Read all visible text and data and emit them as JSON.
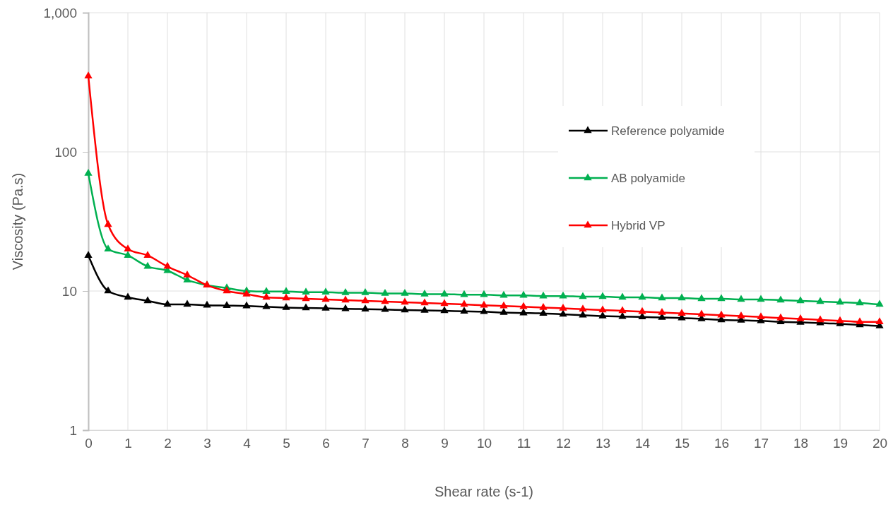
{
  "chart_data": {
    "type": "line",
    "xlabel": "Shear rate (s-1)",
    "ylabel": "Viscosity (Pa.s)",
    "log": "y",
    "grid": true,
    "legend": "right",
    "marker": "triangle",
    "line_style": "solid",
    "x": [
      0,
      0.5,
      1,
      1.5,
      2,
      2.5,
      3,
      3.5,
      4,
      4.5,
      5,
      5.5,
      6,
      6.5,
      7,
      7.5,
      8,
      8.5,
      9,
      9.5,
      10,
      10.5,
      11,
      11.5,
      12,
      12.5,
      13,
      13.5,
      14,
      14.5,
      15,
      15.5,
      16,
      16.5,
      17,
      17.5,
      18,
      18.5,
      19,
      19.5,
      20
    ],
    "xlim": [
      0,
      20
    ],
    "xticks": [
      0,
      1,
      2,
      3,
      4,
      5,
      6,
      7,
      8,
      9,
      10,
      11,
      12,
      13,
      14,
      15,
      16,
      17,
      18,
      19,
      20
    ],
    "ylim": [
      1,
      1000
    ],
    "yticks": [
      1,
      10,
      100,
      {
        "value": 1000,
        "label": "1,000"
      }
    ],
    "series": [
      {
        "name": "Reference polyamide",
        "color": "#000000",
        "values": [
          18,
          10,
          9,
          8.5,
          8,
          8,
          7.9,
          7.85,
          7.8,
          7.7,
          7.6,
          7.55,
          7.5,
          7.45,
          7.4,
          7.35,
          7.3,
          7.25,
          7.2,
          7.15,
          7.1,
          7.0,
          6.95,
          6.9,
          6.8,
          6.7,
          6.6,
          6.55,
          6.5,
          6.45,
          6.4,
          6.3,
          6.2,
          6.15,
          6.1,
          6.0,
          5.95,
          5.9,
          5.8,
          5.7,
          5.6
        ]
      },
      {
        "name": "AB polyamide",
        "color": "#00b050",
        "values": [
          70,
          20,
          18,
          15,
          14,
          12,
          11,
          10.5,
          10,
          9.9,
          9.9,
          9.8,
          9.8,
          9.7,
          9.7,
          9.6,
          9.6,
          9.5,
          9.5,
          9.4,
          9.4,
          9.3,
          9.3,
          9.2,
          9.2,
          9.1,
          9.1,
          9.0,
          9.0,
          8.9,
          8.9,
          8.8,
          8.8,
          8.7,
          8.7,
          8.6,
          8.5,
          8.4,
          8.3,
          8.2,
          8.0
        ]
      },
      {
        "name": "Hybrid VP",
        "color": "#ff0000",
        "values": [
          350,
          30,
          20,
          18,
          15,
          13,
          11,
          10,
          9.5,
          9,
          8.9,
          8.8,
          8.7,
          8.6,
          8.5,
          8.4,
          8.3,
          8.2,
          8.1,
          8.0,
          7.9,
          7.8,
          7.7,
          7.6,
          7.5,
          7.4,
          7.3,
          7.2,
          7.1,
          7.0,
          6.9,
          6.8,
          6.7,
          6.6,
          6.5,
          6.4,
          6.3,
          6.2,
          6.1,
          6.0,
          6.0
        ]
      }
    ]
  }
}
